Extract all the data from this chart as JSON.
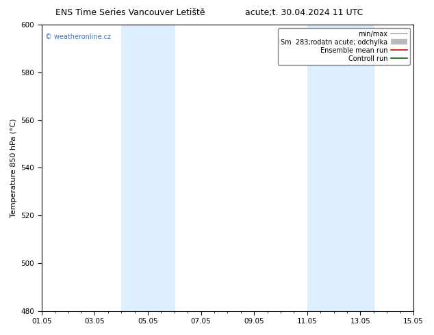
{
  "title_left": "ENS Time Series Vancouver Letiště",
  "title_right": "acute;t. 30.04.2024 11 UTC",
  "ylabel": "Temperature 850 hPa (°C)",
  "xlabel_ticks": [
    "01.05",
    "03.05",
    "05.05",
    "07.05",
    "09.05",
    "11.05",
    "13.05",
    "15.05"
  ],
  "ylim": [
    480,
    600
  ],
  "yticks": [
    480,
    500,
    520,
    540,
    560,
    580,
    600
  ],
  "shaded_bands": [
    {
      "xstart": 3.0,
      "xend": 5.0
    },
    {
      "xstart": 10.0,
      "xend": 12.5
    }
  ],
  "shade_color": "#ddeeff",
  "copyright_text": "© weatheronline.cz",
  "copyright_color": "#3377cc",
  "background_color": "#ffffff",
  "plot_background": "#ffffff",
  "legend_entries": [
    {
      "label": "min/max",
      "color": "#aaaaaa",
      "lw": 1.2
    },
    {
      "label": "Sm  283;rodatn acute; odchylka",
      "color": "#cccccc",
      "lw": 6
    },
    {
      "label": "Ensemble mean run",
      "color": "#dd0000",
      "lw": 1.2
    },
    {
      "label": "Controll run",
      "color": "#006600",
      "lw": 1.2
    }
  ],
  "grid_color": "#cccccc",
  "tick_label_fontsize": 7.5,
  "axis_label_fontsize": 8,
  "title_fontsize": 9,
  "legend_fontsize": 7
}
